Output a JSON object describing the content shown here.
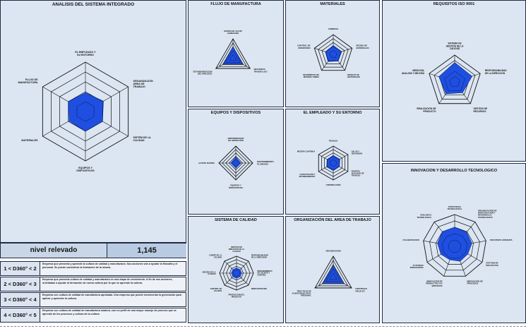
{
  "panels": {
    "integrado": {
      "title": "ANALISIS DEL SISTEMA INTEGRADO",
      "labels": [
        "EL EMPLEADO Y SU ENTORNO",
        "ORGANIZACIÓN AREA DE TRABAJO",
        "SISTEM DE LA CALIDAD",
        "EQUIPOS Y DISPOSITIVOS",
        "MATERIALES",
        "FLUJO DE MANUFACTURA"
      ],
      "values": [
        0.38,
        0.42,
        0.4,
        0.4,
        0.38,
        0.4
      ]
    },
    "flujo": {
      "title": "FLUJO DE MANUFACTURA",
      "labels": [
        "MAPEO DE VALOR AGREGADO",
        "RECURSOS TRANSFLUJO",
        "ESTANDARIZACION DEL PROCESO"
      ],
      "values": [
        0.6,
        0.55,
        0.55
      ]
    },
    "materiales": {
      "title": "MATERIALES",
      "labels": [
        "COMPRAS",
        "RECIBO DE MATERIALES",
        "MANEJO DE MATERIALES",
        "MOVIMIENTO DE MATERIA PRIMA",
        "CONTROL DE INVENTARIO"
      ],
      "values": [
        0.45,
        0.45,
        0.42,
        0.45,
        0.42
      ]
    },
    "requisitos": {
      "title": "REQUISITOS ISO 9001",
      "labels": [
        "SISTEMA DE GESTION DE LA CALIDAD",
        "RESPONSABILIDAD DE LA DIRECCION",
        "GESTION DE RECURSOS",
        "REALIZACION DE PRODUCTO",
        "MEDICION, ANALISIS Y MEJORA"
      ],
      "values": [
        0.72,
        0.68,
        0.5,
        0.55,
        0.62
      ]
    },
    "equipos": {
      "title": "EQUIPOS Y DISPOSITIVOS",
      "labels": [
        "DISPONIBILIDAD DE OPERACIÓN",
        "MANTENIMIENTO PLANEADO",
        "EQUIPOS Y DISPOSITIVOS",
        "AJUSTE RAPIDO"
      ],
      "values": [
        0.35,
        0.3,
        0.3,
        0.3
      ]
    },
    "empleado": {
      "title": "EL EMPLEADO Y SU ENTORNO",
      "labels": [
        "TRABAJO",
        "SALUD Y SEGURIDAD",
        "EQUIPOS SUALIDAD DE TRABAJO",
        "COMUNICACIÓN",
        "CAPACITACION Y ENTRENAMIENTO",
        "MEJORA CONTINUA"
      ],
      "values": [
        0.45,
        0.45,
        0.42,
        0.45,
        0.45,
        0.42
      ]
    },
    "calidad": {
      "title": "SISTEMA DE CALIDAD",
      "labels": [
        "SERVICIO DE DIRECCION DE LA CALIDAD",
        "RESPONSABILIDAD DE LA DIRECCION",
        "PROCEDIMIENTO DE CALIDAD Y CONTROL",
        "MERCADOTECNIA",
        "PRODUCCION DEL PRODUCTO",
        "CONTROL DE CALIDAD",
        "MEJORA DE LA CALIDAD",
        "COMITE DE LA CALIDAD"
      ],
      "values": [
        0.3,
        0.3,
        0.3,
        0.3,
        0.3,
        0.3,
        0.3,
        0.3
      ]
    },
    "organizacion": {
      "title": "ORGANIZACIÓN DEL AREA DE TRABAJO",
      "labels": [
        "ORGANIZACIÓN",
        "CONTROLES VISUALES",
        "PRACTICAS DE ALMACENAJE EN EL PERSONAL"
      ],
      "values": [
        0.55,
        0.55,
        0.55
      ]
    },
    "innovacion": {
      "title": "INNOVACION Y DESARROLLO TECNOLOGICO",
      "labels": [
        "ESTRATEGIA TECNOLOGICA",
        "ORGANIZACIÓN DE INVESTIGACION Y DESARROLLO TECNOLOGICO",
        "RECURSOS HUMANOS",
        "GESTION DE PROYECTOS",
        "INNOVACION DE PROCESOS",
        "INNOVACION DE PRODUCTOS Y/O SERVICIOS",
        "ACTIVIDAD INNOVADORA",
        "COLABORACION",
        "VIGILANCIA TECNOLOGICA"
      ],
      "values": [
        0.6,
        0.58,
        0.55,
        0.48,
        0.5,
        0.45,
        0.5,
        0.55,
        0.6
      ]
    }
  },
  "score": {
    "label": "nivel relevado",
    "value": "1,145"
  },
  "levels": [
    {
      "code": "1 < D360° < 2",
      "desc": "Empresa que presenta y aprende la cultura de calidad y manufactura. Sus acciones van a ayudar la filosofia y el personal. Se puede considerar la formación de la misma."
    },
    {
      "code": "2 < D360° < 3",
      "desc": "Empresa que presenta cultura de calidad y manufactura en una etapa de crecimiento. A fin de sus acciones, orientadas a ayudar la formación de nueva cultura por la que se aprende la cultura."
    },
    {
      "code": "3 < D360° < 4",
      "desc": "Empresa con cultura de calidad de manufactura aprobada. Una empresa que puede incrementar la generación para aplicar y aprender la cultura."
    },
    {
      "code": "4 < D360° < 5",
      "desc": "Empresa con cultura de calidad de manufactura madura, con un perfil de una mayor manejo de proceso que se aprende de los procesos y cultura de la cultura."
    }
  ],
  "colors": {
    "panel_bg": "#dce6f2",
    "border": "#1f2a44",
    "fill": "#1f4fe0",
    "grid": "#111111"
  }
}
